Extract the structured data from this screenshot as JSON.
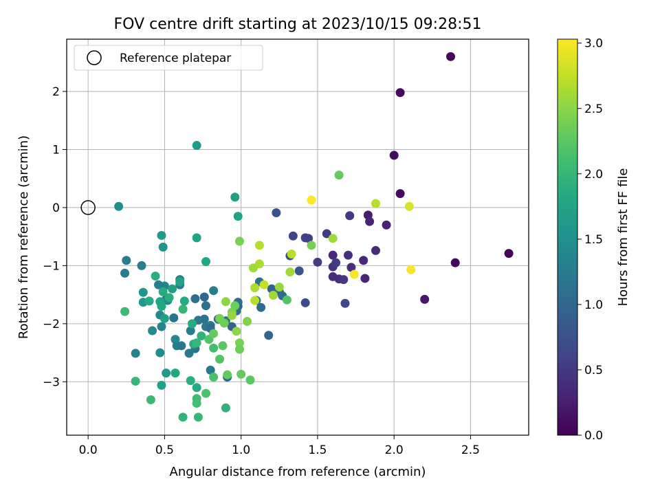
{
  "chart_data": {
    "type": "scatter",
    "title": "FOV centre drift starting at 2023/10/15 09:28:51",
    "xlabel": "Angular distance from reference (arcmin)",
    "ylabel": "Rotation from reference (arcmin)",
    "xlim": [
      -0.14,
      2.88
    ],
    "ylim": [
      -3.92,
      2.9
    ],
    "x_ticks": [
      0.0,
      0.5,
      1.0,
      1.5,
      2.0,
      2.5
    ],
    "x_tick_labels": [
      "0.0",
      "0.5",
      "1.0",
      "1.5",
      "2.0",
      "2.5"
    ],
    "y_ticks": [
      -3,
      -2,
      -1,
      0,
      1,
      2
    ],
    "y_tick_labels": [
      "−3",
      "−2",
      "−1",
      "0",
      "1",
      "2"
    ],
    "grid": true,
    "legend": {
      "position": "top-left",
      "entries": [
        "Reference platepar"
      ]
    },
    "reference_point": {
      "x": 0.0,
      "y": 0.0,
      "label": "Reference platepar"
    },
    "colorbar": {
      "label": "Hours from first FF file",
      "colormap": "viridis",
      "range": [
        0.0,
        3.03
      ],
      "ticks": [
        0.0,
        0.5,
        1.0,
        1.5,
        2.0,
        2.5,
        3.0
      ],
      "tick_labels": [
        "0.0",
        "0.5",
        "1.0",
        "1.5",
        "2.0",
        "2.5",
        "3.0"
      ]
    },
    "points": [
      {
        "x": 2.37,
        "y": 2.6,
        "c": 0.05
      },
      {
        "x": 2.04,
        "y": 1.98,
        "c": 0.06
      },
      {
        "x": 2.0,
        "y": 0.9,
        "c": 0.1
      },
      {
        "x": 2.04,
        "y": 0.24,
        "c": 0.08
      },
      {
        "x": 2.75,
        "y": -0.79,
        "c": 0.04
      },
      {
        "x": 2.4,
        "y": -0.95,
        "c": 0.07
      },
      {
        "x": 2.2,
        "y": -1.58,
        "c": 0.18
      },
      {
        "x": 1.95,
        "y": -0.3,
        "c": 0.28
      },
      {
        "x": 1.83,
        "y": -0.13,
        "c": 0.25
      },
      {
        "x": 1.84,
        "y": -0.24,
        "c": 0.3
      },
      {
        "x": 1.88,
        "y": -0.74,
        "c": 0.36
      },
      {
        "x": 1.8,
        "y": -0.91,
        "c": 0.33
      },
      {
        "x": 1.81,
        "y": -1.22,
        "c": 0.3
      },
      {
        "x": 1.72,
        "y": -1.03,
        "c": 0.4
      },
      {
        "x": 1.7,
        "y": -0.82,
        "c": 0.42
      },
      {
        "x": 1.71,
        "y": -0.14,
        "c": 0.5
      },
      {
        "x": 1.6,
        "y": -0.82,
        "c": 0.35
      },
      {
        "x": 1.6,
        "y": -1.02,
        "c": 0.45
      },
      {
        "x": 1.62,
        "y": -0.95,
        "c": 0.55
      },
      {
        "x": 1.6,
        "y": -1.19,
        "c": 0.4
      },
      {
        "x": 1.64,
        "y": -1.23,
        "c": 0.42
      },
      {
        "x": 1.67,
        "y": -1.24,
        "c": 0.48
      },
      {
        "x": 1.68,
        "y": -1.65,
        "c": 0.62
      },
      {
        "x": 1.56,
        "y": -0.45,
        "c": 0.5
      },
      {
        "x": 1.5,
        "y": -0.94,
        "c": 0.55
      },
      {
        "x": 1.42,
        "y": -0.52,
        "c": 0.6
      },
      {
        "x": 1.44,
        "y": -0.53,
        "c": 0.58
      },
      {
        "x": 1.34,
        "y": -0.49,
        "c": 0.62
      },
      {
        "x": 1.32,
        "y": -0.83,
        "c": 0.75
      },
      {
        "x": 1.38,
        "y": -1.09,
        "c": 0.8
      },
      {
        "x": 1.42,
        "y": -1.64,
        "c": 0.7
      },
      {
        "x": 1.23,
        "y": -0.09,
        "c": 0.75
      },
      {
        "x": 1.2,
        "y": -1.4,
        "c": 0.95
      },
      {
        "x": 1.25,
        "y": -1.45,
        "c": 1.0
      },
      {
        "x": 1.27,
        "y": -1.52,
        "c": 1.05
      },
      {
        "x": 1.18,
        "y": -2.2,
        "c": 1.0
      },
      {
        "x": 1.12,
        "y": -1.28,
        "c": 1.1
      },
      {
        "x": 1.13,
        "y": -1.72,
        "c": 1.05
      },
      {
        "x": 1.1,
        "y": -1.6,
        "c": 1.1
      },
      {
        "x": 0.98,
        "y": -1.63,
        "c": 1.05
      },
      {
        "x": 0.98,
        "y": -1.7,
        "c": 1.0
      },
      {
        "x": 0.97,
        "y": -1.78,
        "c": 1.12
      },
      {
        "x": 0.91,
        "y": -2.92,
        "c": 1.0
      },
      {
        "x": 0.94,
        "y": -2.05,
        "c": 0.95
      },
      {
        "x": 0.9,
        "y": -1.95,
        "c": 1.15
      },
      {
        "x": 0.85,
        "y": -1.92,
        "c": 1.1
      },
      {
        "x": 0.8,
        "y": -2.03,
        "c": 1.25
      },
      {
        "x": 0.76,
        "y": -1.92,
        "c": 1.15
      },
      {
        "x": 0.77,
        "y": -2.05,
        "c": 1.2
      },
      {
        "x": 0.8,
        "y": -2.8,
        "c": 1.2
      },
      {
        "x": 0.8,
        "y": -2.08,
        "c": 1.05
      },
      {
        "x": 0.82,
        "y": -1.43,
        "c": 1.3
      },
      {
        "x": 0.77,
        "y": -1.69,
        "c": 1.1
      },
      {
        "x": 0.76,
        "y": -1.54,
        "c": 1.0
      },
      {
        "x": 0.7,
        "y": -1.57,
        "c": 1.1
      },
      {
        "x": 0.72,
        "y": -1.94,
        "c": 1.2
      },
      {
        "x": 0.7,
        "y": -2.43,
        "c": 1.15
      },
      {
        "x": 0.67,
        "y": -2.12,
        "c": 1.25
      },
      {
        "x": 0.66,
        "y": -2.51,
        "c": 1.2
      },
      {
        "x": 0.6,
        "y": -1.24,
        "c": 1.35
      },
      {
        "x": 0.6,
        "y": -1.33,
        "c": 1.25
      },
      {
        "x": 0.56,
        "y": -1.9,
        "c": 1.15
      },
      {
        "x": 0.57,
        "y": -2.27,
        "c": 1.4
      },
      {
        "x": 0.58,
        "y": -2.38,
        "c": 1.3
      },
      {
        "x": 0.61,
        "y": -2.38,
        "c": 1.2
      },
      {
        "x": 0.51,
        "y": -1.58,
        "c": 1.3
      },
      {
        "x": 0.52,
        "y": -1.6,
        "c": 1.4
      },
      {
        "x": 0.5,
        "y": -1.35,
        "c": 1.35
      },
      {
        "x": 0.46,
        "y": -1.33,
        "c": 1.3
      },
      {
        "x": 0.47,
        "y": -1.85,
        "c": 1.4
      },
      {
        "x": 0.48,
        "y": -2.05,
        "c": 1.35
      },
      {
        "x": 0.47,
        "y": -2.5,
        "c": 1.45
      },
      {
        "x": 0.42,
        "y": -2.12,
        "c": 1.4
      },
      {
        "x": 0.31,
        "y": -2.51,
        "c": 1.35
      },
      {
        "x": 0.24,
        "y": -1.13,
        "c": 1.25
      },
      {
        "x": 0.25,
        "y": -0.91,
        "c": 1.3
      },
      {
        "x": 0.35,
        "y": -1.0,
        "c": 1.3
      },
      {
        "x": 0.2,
        "y": 0.02,
        "c": 1.45
      },
      {
        "x": 0.49,
        "y": -0.68,
        "c": 1.55
      },
      {
        "x": 0.48,
        "y": -0.48,
        "c": 1.65
      },
      {
        "x": 0.71,
        "y": 1.07,
        "c": 1.65
      },
      {
        "x": 0.96,
        "y": 0.18,
        "c": 1.7
      },
      {
        "x": 0.98,
        "y": -0.15,
        "c": 1.72
      },
      {
        "x": 0.71,
        "y": -0.52,
        "c": 1.75
      },
      {
        "x": 0.77,
        "y": -0.93,
        "c": 1.8
      },
      {
        "x": 0.36,
        "y": -1.46,
        "c": 1.55
      },
      {
        "x": 0.36,
        "y": -1.63,
        "c": 1.6
      },
      {
        "x": 0.4,
        "y": -1.61,
        "c": 1.85
      },
      {
        "x": 0.44,
        "y": -1.18,
        "c": 1.9
      },
      {
        "x": 0.47,
        "y": -1.62,
        "c": 1.75
      },
      {
        "x": 0.48,
        "y": -1.7,
        "c": 1.8
      },
      {
        "x": 0.49,
        "y": -1.45,
        "c": 1.85
      },
      {
        "x": 0.53,
        "y": -1.55,
        "c": 1.9
      },
      {
        "x": 0.55,
        "y": -1.4,
        "c": 1.7
      },
      {
        "x": 0.6,
        "y": -1.28,
        "c": 1.75
      },
      {
        "x": 0.5,
        "y": -1.91,
        "c": 1.7
      },
      {
        "x": 0.51,
        "y": -2.85,
        "c": 1.65
      },
      {
        "x": 0.48,
        "y": -3.06,
        "c": 1.7
      },
      {
        "x": 0.57,
        "y": -2.85,
        "c": 1.8
      },
      {
        "x": 0.62,
        "y": -1.75,
        "c": 2.0
      },
      {
        "x": 0.63,
        "y": -1.61,
        "c": 1.85
      },
      {
        "x": 0.68,
        "y": -2.0,
        "c": 1.85
      },
      {
        "x": 0.69,
        "y": -2.35,
        "c": 1.9
      },
      {
        "x": 0.71,
        "y": -2.33,
        "c": 2.0
      },
      {
        "x": 0.74,
        "y": -2.21,
        "c": 1.95
      },
      {
        "x": 0.67,
        "y": -2.98,
        "c": 1.9
      },
      {
        "x": 0.71,
        "y": -3.1,
        "c": 1.85
      },
      {
        "x": 0.71,
        "y": -3.29,
        "c": 2.05
      },
      {
        "x": 0.71,
        "y": -3.37,
        "c": 2.1
      },
      {
        "x": 0.72,
        "y": -3.61,
        "c": 2.0
      },
      {
        "x": 0.62,
        "y": -3.61,
        "c": 1.95
      },
      {
        "x": 0.41,
        "y": -3.31,
        "c": 2.05
      },
      {
        "x": 0.31,
        "y": -2.99,
        "c": 2.0
      },
      {
        "x": 0.24,
        "y": -1.79,
        "c": 2.05
      },
      {
        "x": 0.77,
        "y": -3.2,
        "c": 2.15
      },
      {
        "x": 0.79,
        "y": -2.27,
        "c": 2.2
      },
      {
        "x": 0.82,
        "y": -2.42,
        "c": 2.1
      },
      {
        "x": 0.82,
        "y": -2.92,
        "c": 2.15
      },
      {
        "x": 0.86,
        "y": -2.61,
        "c": 2.2
      },
      {
        "x": 0.88,
        "y": -2.38,
        "c": 2.25
      },
      {
        "x": 0.82,
        "y": -2.17,
        "c": 2.3
      },
      {
        "x": 0.86,
        "y": -1.91,
        "c": 2.4
      },
      {
        "x": 0.89,
        "y": -1.99,
        "c": 2.35
      },
      {
        "x": 0.9,
        "y": -1.62,
        "c": 2.5
      },
      {
        "x": 0.9,
        "y": -3.45,
        "c": 1.95
      },
      {
        "x": 0.91,
        "y": -2.88,
        "c": 2.3
      },
      {
        "x": 0.94,
        "y": -1.8,
        "c": 2.45
      },
      {
        "x": 0.94,
        "y": -1.86,
        "c": 2.55
      },
      {
        "x": 0.96,
        "y": -1.69,
        "c": 2.35
      },
      {
        "x": 0.97,
        "y": -2.13,
        "c": 2.5
      },
      {
        "x": 0.99,
        "y": -2.33,
        "c": 2.4
      },
      {
        "x": 0.99,
        "y": -2.44,
        "c": 2.35
      },
      {
        "x": 1.0,
        "y": -2.87,
        "c": 2.3
      },
      {
        "x": 1.04,
        "y": -1.96,
        "c": 2.45
      },
      {
        "x": 1.06,
        "y": -2.97,
        "c": 2.25
      },
      {
        "x": 0.99,
        "y": -0.58,
        "c": 2.4
      },
      {
        "x": 1.08,
        "y": -1.04,
        "c": 2.6
      },
      {
        "x": 1.09,
        "y": -1.38,
        "c": 2.65
      },
      {
        "x": 1.09,
        "y": -1.6,
        "c": 2.7
      },
      {
        "x": 1.12,
        "y": -0.65,
        "c": 2.7
      },
      {
        "x": 1.12,
        "y": -0.97,
        "c": 2.65
      },
      {
        "x": 1.15,
        "y": -1.33,
        "c": 2.75
      },
      {
        "x": 1.21,
        "y": -1.51,
        "c": 2.6
      },
      {
        "x": 1.25,
        "y": -1.37,
        "c": 2.55
      },
      {
        "x": 1.3,
        "y": -1.59,
        "c": 2.2
      },
      {
        "x": 1.32,
        "y": -1.11,
        "c": 2.6
      },
      {
        "x": 1.33,
        "y": -0.8,
        "c": 2.7
      },
      {
        "x": 1.46,
        "y": -0.65,
        "c": 2.4
      },
      {
        "x": 1.64,
        "y": 0.56,
        "c": 2.3
      },
      {
        "x": 1.6,
        "y": -0.53,
        "c": 2.6
      },
      {
        "x": 1.74,
        "y": -1.15,
        "c": 3.0
      },
      {
        "x": 1.46,
        "y": 0.13,
        "c": 3.02
      },
      {
        "x": 1.88,
        "y": 0.07,
        "c": 2.7
      },
      {
        "x": 2.1,
        "y": 0.02,
        "c": 2.85
      },
      {
        "x": 2.11,
        "y": -1.07,
        "c": 3.0
      }
    ]
  }
}
